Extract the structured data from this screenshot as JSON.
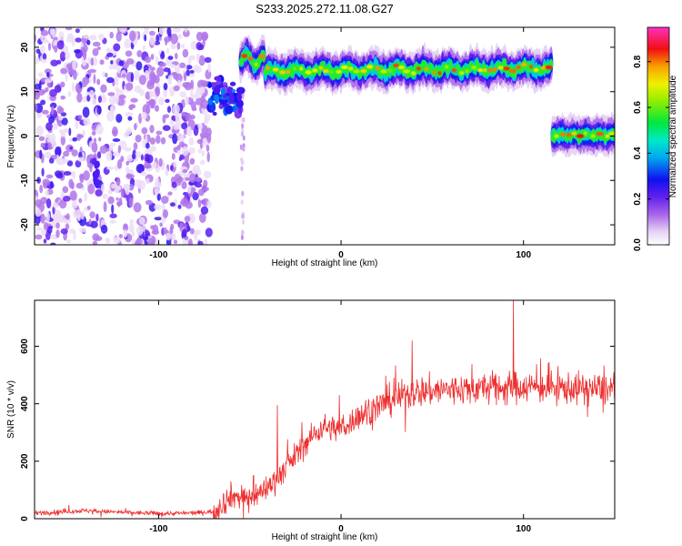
{
  "figure_title": "S233.2025.272.11.08.G27",
  "chart_data": [
    {
      "type": "heatmap",
      "title": "S233.2025.272.11.08.G27",
      "xlabel": "Height of straight line (km)",
      "ylabel": "Frequency (Hz)",
      "xlim": [
        -168,
        150
      ],
      "ylim": [
        -24.5,
        24.5
      ],
      "xticks": [
        -100,
        0,
        100
      ],
      "yticks": [
        20,
        10,
        0,
        -10,
        -20
      ],
      "colorbar": {
        "label": "Normalized spectral amplitude",
        "range": [
          0.0,
          0.95
        ],
        "ticks": [
          0.0,
          0.2,
          0.4,
          0.6,
          0.8
        ],
        "colormap": "rainbow (violet-blue-cyan-green-yellow-red-magenta)"
      },
      "features": [
        {
          "name": "noise region",
          "x_range": [
            -168,
            -72
          ],
          "freq_range": [
            -24.5,
            24.5
          ],
          "amplitude": 0.05
        },
        {
          "name": "onset cluster",
          "x_range": [
            -72,
            -55
          ],
          "freq_center": 9,
          "amplitude": 0.25
        },
        {
          "name": "secondary noise column",
          "x_range": [
            -56,
            -52
          ],
          "freq_range": [
            -24,
            22
          ],
          "amplitude": 0.02
        },
        {
          "name": "main line",
          "x_range": [
            -55,
            115
          ],
          "freq_start": 15,
          "freq_end": 15.5,
          "amplitude": 0.75
        },
        {
          "name": "low-frequency line",
          "x_range": [
            115,
            150
          ],
          "freq_center": 0.2,
          "amplitude": 0.8
        }
      ]
    },
    {
      "type": "line",
      "xlabel": "Height of straight line (km)",
      "ylabel": "SNR (10 * v/v)",
      "xlim": [
        -168,
        150
      ],
      "ylim": [
        0,
        760
      ],
      "xticks": [
        -100,
        0,
        100
      ],
      "yticks": [
        0,
        200,
        400,
        600
      ],
      "series": [
        {
          "name": "SNR",
          "color": "#ee3030",
          "x": [
            -168,
            -140,
            -120,
            -100,
            -80,
            -70,
            -60,
            -50,
            -40,
            -30,
            -20,
            -10,
            0,
            10,
            20,
            30,
            40,
            60,
            80,
            100,
            120,
            150
          ],
          "mean": [
            20,
            28,
            22,
            18,
            20,
            25,
            80,
            70,
            110,
            180,
            260,
            320,
            310,
            360,
            390,
            420,
            440,
            450,
            455,
            460,
            455,
            450
          ],
          "peaks": [
            {
              "x": 94.5,
              "value": 775
            },
            {
              "x": 39,
              "value": 620
            },
            {
              "x": -35,
              "value": 395
            },
            {
              "x": -1,
              "value": 430
            },
            {
              "x": -48,
              "value": 150
            }
          ]
        }
      ]
    }
  ]
}
